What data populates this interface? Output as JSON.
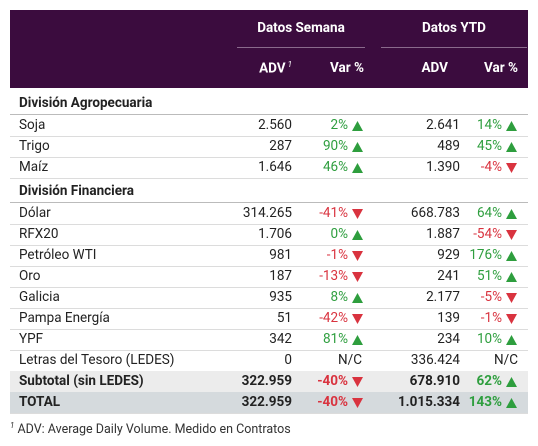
{
  "header": {
    "groups": [
      "Datos Semana",
      "Datos YTD"
    ],
    "columns": [
      "ADV",
      "Var %",
      "ADV",
      "Var %"
    ]
  },
  "sections": [
    {
      "title": "División Agropecuaria",
      "rows": [
        [
          "Soja",
          "2.560",
          "2%",
          "2.641",
          "14%"
        ],
        [
          "Trigo",
          "287",
          "90%",
          "489",
          "45%"
        ],
        [
          "Maíz",
          "1.646",
          "46%",
          "1.390",
          "-4%"
        ]
      ]
    },
    {
      "title": "División Financiera",
      "rows": [
        [
          "Dólar",
          "314.265",
          "-41%",
          "668.783",
          "64%"
        ],
        [
          "RFX20",
          "1.706",
          "0%",
          "1.887",
          "-54%"
        ],
        [
          "Petróleo WTI",
          "981",
          "-1%",
          "929",
          "176%"
        ],
        [
          "Oro",
          "187",
          "-13%",
          "241",
          "51%"
        ],
        [
          "Galicia",
          "935",
          "8%",
          "2.177",
          "-5%"
        ],
        [
          "Pampa Energía",
          "51",
          "-42%",
          "139",
          "-1%"
        ],
        [
          "YPF",
          "342",
          "81%",
          "234",
          "10%"
        ],
        [
          "Letras del Tesoro (LEDES)",
          "0",
          "N/C",
          "336.424",
          "N/C"
        ]
      ]
    }
  ],
  "totals": [
    [
      "Subtotal (sin LEDES)",
      "322.959",
      "-40%",
      "678.910",
      "62%"
    ],
    [
      "TOTAL",
      "322.959",
      "-40%",
      "1.015.334",
      "143%"
    ]
  ],
  "footnote": {
    "mark": "1",
    "text": "ADV: Average Daily Volume. Medido en Contratos"
  }
}
